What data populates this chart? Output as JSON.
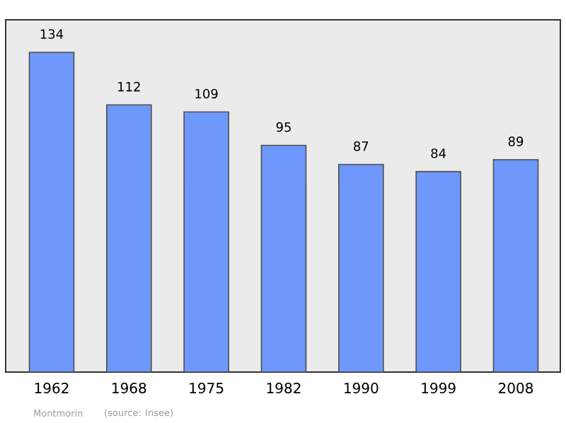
{
  "chart_data": {
    "type": "bar",
    "categories": [
      "1962",
      "1968",
      "1975",
      "1982",
      "1990",
      "1999",
      "2008"
    ],
    "values": [
      134,
      112,
      109,
      95,
      87,
      84,
      89
    ],
    "color": "#6f98fc",
    "data_labels": true,
    "annotations": [
      "Montmorin",
      "(source: Insee)"
    ]
  }
}
